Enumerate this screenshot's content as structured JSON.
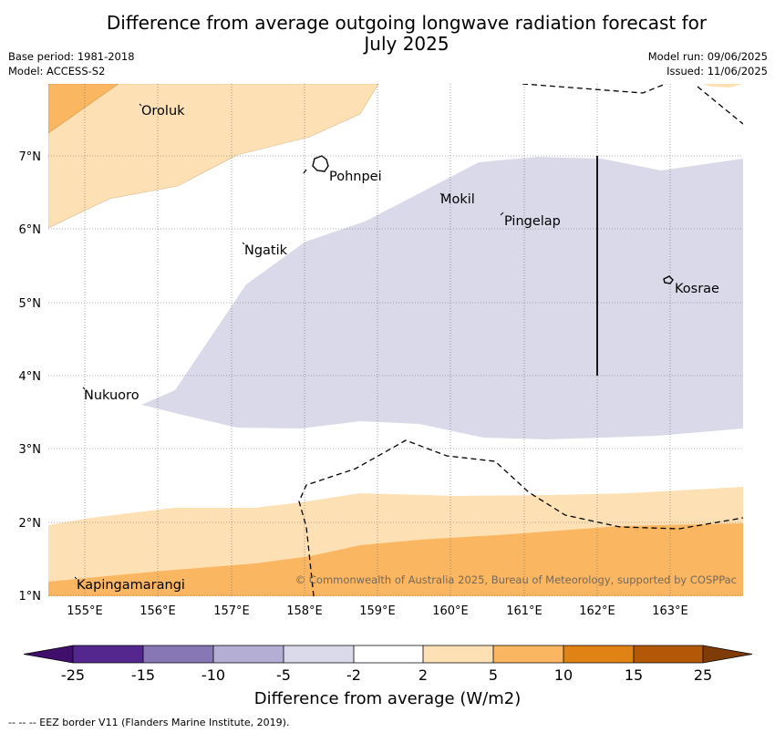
{
  "header": {
    "title_line1": "Difference from average outgoing longwave radiation forecast for",
    "title_line2": "July 2025",
    "base_period": "Base period: 1981-2018",
    "model": "Model: ACCESS-S2",
    "model_run": "Model run: 09/06/2025",
    "issued": "Issued: 11/06/2025"
  },
  "map": {
    "lat_labels": [
      "7°N",
      "6°N",
      "5°N",
      "4°N",
      "3°N",
      "2°N",
      "1°N"
    ],
    "lon_labels": [
      "155°E",
      "156°E",
      "157°E",
      "158°E",
      "159°E",
      "160°E",
      "161°E",
      "162°E",
      "163°E"
    ],
    "places": [
      "Oroluk",
      "Pohnpei",
      "Mokil",
      "Pingelap",
      "Ngatik",
      "Kosrae",
      "Nukuoro",
      "Kapingamarangi"
    ],
    "copyright": "© Commonwealth of Australia 2025, Bureau of Meteorology, supported by COSPPac"
  },
  "colorbar": {
    "colors": [
      "#3f0f6b",
      "#54278f",
      "#8777b5",
      "#b4aed4",
      "#d9d9ea",
      "#ffffff",
      "#fde0b4",
      "#fbb662",
      "#e08214",
      "#b35806",
      "#7f3b08"
    ],
    "ticks": [
      "-25",
      "-15",
      "-10",
      "-5",
      "-2",
      "2",
      "5",
      "10",
      "15",
      "25"
    ],
    "label": "Difference from average (W/m2)"
  },
  "footer": {
    "eez_note": "--  --  -- EEZ border V11 (Flanders Marine Institute, 2019)."
  }
}
